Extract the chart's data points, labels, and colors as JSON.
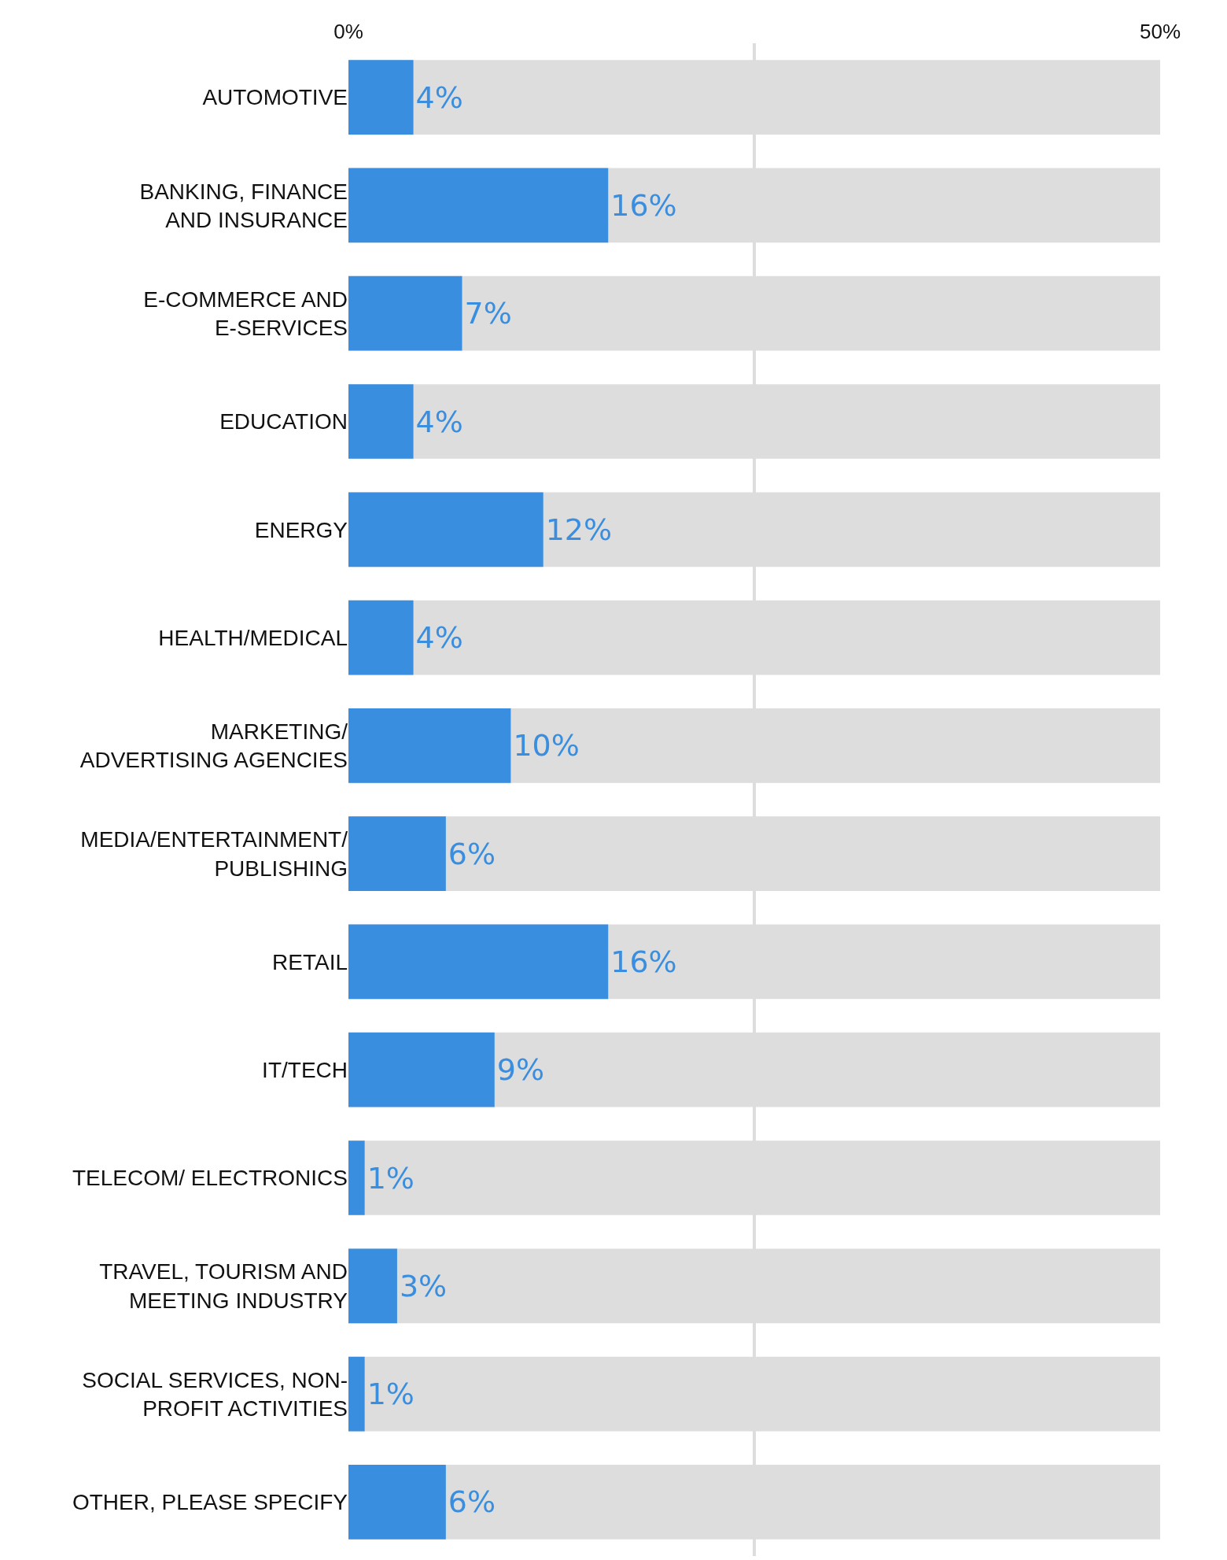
{
  "chart_data": {
    "type": "bar",
    "orientation": "horizontal",
    "categories": [
      "AUTOMOTIVE",
      "BANKING, FINANCE\nAND INSURANCE",
      "E-COMMERCE AND\nE-SERVICES",
      "EDUCATION",
      "ENERGY",
      "HEALTH/MEDICAL",
      "MARKETING/\nADVERTISING AGENCIES",
      "MEDIA/ENTERTAINMENT/\nPUBLISHING",
      "RETAIL",
      "IT/TECH",
      "TELECOM/ ELECTRONICS",
      "TRAVEL, TOURISM AND\nMEETING INDUSTRY",
      "SOCIAL SERVICES, NON-\nPROFIT ACTIVITIES",
      "OTHER, PLEASE SPECIFY"
    ],
    "values": [
      4,
      16,
      7,
      4,
      12,
      4,
      10,
      6,
      16,
      9,
      1,
      3,
      1,
      6
    ],
    "value_labels": [
      "4%",
      "16%",
      "7%",
      "4%",
      "12%",
      "4%",
      "10%",
      "6%",
      "16%",
      "9%",
      "1%",
      "3%",
      "1%",
      "6%"
    ],
    "color": "#3a8ee0",
    "xlim": [
      0,
      50
    ],
    "xticks": [
      {
        "value": 0,
        "label": "0%"
      },
      {
        "value": 25,
        "label": null
      },
      {
        "value": 50,
        "label": "50%"
      }
    ],
    "grid": "x"
  }
}
